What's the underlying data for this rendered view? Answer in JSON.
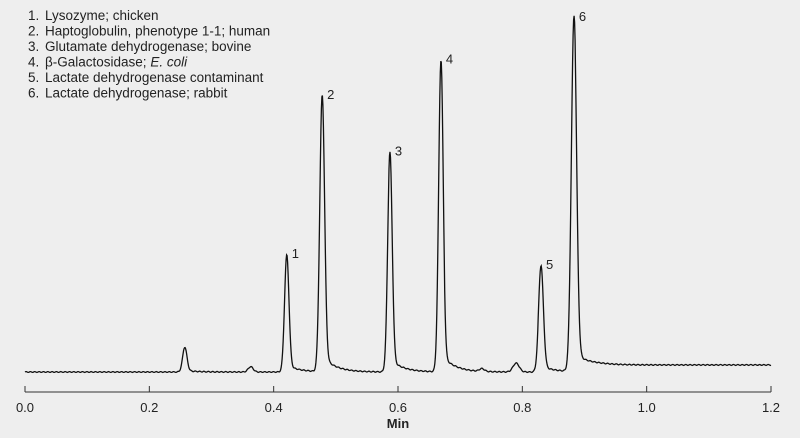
{
  "chart_data": {
    "type": "line",
    "title": "",
    "xlabel": "Min",
    "ylabel": "",
    "xlim": [
      0.0,
      1.2
    ],
    "ylim": [
      0,
      100
    ],
    "grid": false,
    "x_ticks": [
      "0.0",
      "0.2",
      "0.4",
      "0.6",
      "0.8",
      "1.0",
      "1.2"
    ],
    "legend": {
      "placement": "top-left",
      "entries": [
        {
          "num": "1.",
          "text": "Lysozyme; chicken"
        },
        {
          "num": "2.",
          "text": "Haptoglobulin, phenotype 1-1; human"
        },
        {
          "num": "3.",
          "text": "Glutamate dehydrogenase; bovine"
        },
        {
          "num": "4.",
          "text": "β-Galactosidase; ",
          "italic": "E. coli"
        },
        {
          "num": "5.",
          "text": "Lactate dehydrogenase contaminant"
        },
        {
          "num": "6.",
          "text": "Lactate dehydrogenase; rabbit"
        }
      ]
    },
    "peaks": [
      {
        "label": "",
        "rt": 0.257,
        "height": 7,
        "width": 0.0035
      },
      {
        "label": "",
        "rt": 0.363,
        "height": 1.5,
        "width": 0.004
      },
      {
        "label": "1",
        "rt": 0.421,
        "height": 33,
        "width": 0.0035
      },
      {
        "label": "2",
        "rt": 0.478,
        "height": 78,
        "width": 0.0038
      },
      {
        "label": "3",
        "rt": 0.587,
        "height": 62,
        "width": 0.0036
      },
      {
        "label": "4",
        "rt": 0.669,
        "height": 88,
        "width": 0.0036
      },
      {
        "label": "",
        "rt": 0.735,
        "height": 0.8,
        "width": 0.004
      },
      {
        "label": "",
        "rt": 0.79,
        "height": 2.5,
        "width": 0.005
      },
      {
        "label": "5",
        "rt": 0.83,
        "height": 30,
        "width": 0.0038
      },
      {
        "label": "6",
        "rt": 0.883,
        "height": 100,
        "width": 0.0042
      }
    ],
    "baseline": {
      "start": 0,
      "end": 2
    }
  }
}
